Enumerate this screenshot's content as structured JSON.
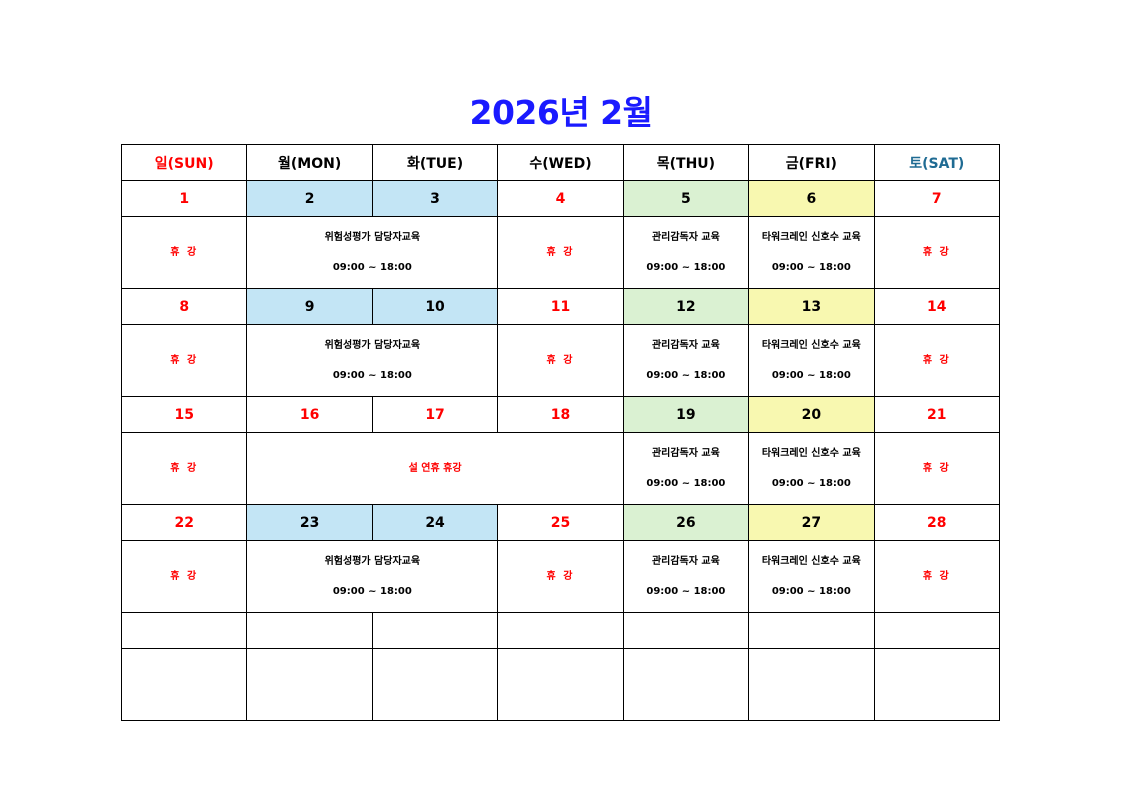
{
  "title": "2026년 2월",
  "colors": {
    "title": "#1a1aff",
    "holiday": "#ff0000",
    "saturday_header": "#1f6b93",
    "monday_tuesday_bg": "#c3e5f5",
    "thursday_bg": "#daf1d2",
    "friday_bg": "#f8f8b0"
  },
  "headers": [
    {
      "label": "일(SUN)",
      "style": "red"
    },
    {
      "label": "월(MON)",
      "style": "blk"
    },
    {
      "label": "화(TUE)",
      "style": "blk"
    },
    {
      "label": "수(WED)",
      "style": "blk"
    },
    {
      "label": "목(THU)",
      "style": "blk"
    },
    {
      "label": "금(FRI)",
      "style": "blk"
    },
    {
      "label": "토(SAT)",
      "style": "sat"
    }
  ],
  "weeks": [
    {
      "dates": [
        {
          "day": "1",
          "style": "red"
        },
        {
          "day": "2",
          "style": "blk bg-blue"
        },
        {
          "day": "3",
          "style": "blk bg-blue"
        },
        {
          "day": "4",
          "style": "red"
        },
        {
          "day": "5",
          "style": "blk bg-green"
        },
        {
          "day": "6",
          "style": "blk bg-yellow"
        },
        {
          "day": "7",
          "style": "red"
        }
      ],
      "events": [
        {
          "span": 1,
          "lines": [
            "휴 강"
          ],
          "style": "red holi"
        },
        {
          "span": 2,
          "lines": [
            "위험성평가 담당자교육",
            "09:00 ~ 18:00"
          ],
          "style": "blk"
        },
        {
          "span": 1,
          "lines": [
            "휴 강"
          ],
          "style": "red holi"
        },
        {
          "span": 1,
          "lines": [
            "관리감독자 교육",
            "09:00 ~ 18:00"
          ],
          "style": "blk"
        },
        {
          "span": 1,
          "lines": [
            "타워크레인 신호수 교육",
            "09:00 ~ 18:00"
          ],
          "style": "blk"
        },
        {
          "span": 1,
          "lines": [
            "휴 강"
          ],
          "style": "red holi"
        }
      ]
    },
    {
      "dates": [
        {
          "day": "8",
          "style": "red"
        },
        {
          "day": "9",
          "style": "blk bg-blue"
        },
        {
          "day": "10",
          "style": "blk bg-blue"
        },
        {
          "day": "11",
          "style": "red"
        },
        {
          "day": "12",
          "style": "blk bg-green"
        },
        {
          "day": "13",
          "style": "blk bg-yellow"
        },
        {
          "day": "14",
          "style": "red"
        }
      ],
      "events": [
        {
          "span": 1,
          "lines": [
            "휴 강"
          ],
          "style": "red holi"
        },
        {
          "span": 2,
          "lines": [
            "위험성평가 담당자교육",
            "09:00 ~ 18:00"
          ],
          "style": "blk"
        },
        {
          "span": 1,
          "lines": [
            "휴 강"
          ],
          "style": "red holi"
        },
        {
          "span": 1,
          "lines": [
            "관리감독자 교육",
            "09:00 ~ 18:00"
          ],
          "style": "blk"
        },
        {
          "span": 1,
          "lines": [
            "타워크레인 신호수 교육",
            "09:00 ~ 18:00"
          ],
          "style": "blk"
        },
        {
          "span": 1,
          "lines": [
            "휴 강"
          ],
          "style": "red holi"
        }
      ]
    },
    {
      "dates": [
        {
          "day": "15",
          "style": "red"
        },
        {
          "day": "16",
          "style": "red"
        },
        {
          "day": "17",
          "style": "red"
        },
        {
          "day": "18",
          "style": "red"
        },
        {
          "day": "19",
          "style": "blk bg-green"
        },
        {
          "day": "20",
          "style": "blk bg-yellow"
        },
        {
          "day": "21",
          "style": "red"
        }
      ],
      "events": [
        {
          "span": 1,
          "lines": [
            "휴 강"
          ],
          "style": "red holi"
        },
        {
          "span": 3,
          "lines": [
            "설 연휴 휴강"
          ],
          "style": "red"
        },
        {
          "span": 1,
          "lines": [
            "관리감독자 교육",
            "09:00 ~ 18:00"
          ],
          "style": "blk"
        },
        {
          "span": 1,
          "lines": [
            "타워크레인 신호수 교육",
            "09:00 ~ 18:00"
          ],
          "style": "blk"
        },
        {
          "span": 1,
          "lines": [
            "휴 강"
          ],
          "style": "red holi"
        }
      ]
    },
    {
      "dates": [
        {
          "day": "22",
          "style": "red"
        },
        {
          "day": "23",
          "style": "blk bg-blue"
        },
        {
          "day": "24",
          "style": "blk bg-blue"
        },
        {
          "day": "25",
          "style": "red"
        },
        {
          "day": "26",
          "style": "blk bg-green"
        },
        {
          "day": "27",
          "style": "blk bg-yellow"
        },
        {
          "day": "28",
          "style": "red"
        }
      ],
      "events": [
        {
          "span": 1,
          "lines": [
            "휴 강"
          ],
          "style": "red holi"
        },
        {
          "span": 2,
          "lines": [
            "위험성평가 담당자교육",
            "09:00 ~ 18:00"
          ],
          "style": "blk"
        },
        {
          "span": 1,
          "lines": [
            "휴 강"
          ],
          "style": "red holi"
        },
        {
          "span": 1,
          "lines": [
            "관리감독자 교육",
            "09:00 ~ 18:00"
          ],
          "style": "blk"
        },
        {
          "span": 1,
          "lines": [
            "타워크레인 신호수 교육",
            "09:00 ~ 18:00"
          ],
          "style": "blk"
        },
        {
          "span": 1,
          "lines": [
            "휴 강"
          ],
          "style": "red holi"
        }
      ]
    },
    {
      "dates": [
        {
          "day": "",
          "style": ""
        },
        {
          "day": "",
          "style": ""
        },
        {
          "day": "",
          "style": ""
        },
        {
          "day": "",
          "style": ""
        },
        {
          "day": "",
          "style": ""
        },
        {
          "day": "",
          "style": ""
        },
        {
          "day": "",
          "style": ""
        }
      ],
      "events": [
        {
          "span": 1,
          "lines": [],
          "style": ""
        },
        {
          "span": 1,
          "lines": [],
          "style": ""
        },
        {
          "span": 1,
          "lines": [],
          "style": ""
        },
        {
          "span": 1,
          "lines": [],
          "style": ""
        },
        {
          "span": 1,
          "lines": [],
          "style": ""
        },
        {
          "span": 1,
          "lines": [],
          "style": ""
        },
        {
          "span": 1,
          "lines": [],
          "style": ""
        }
      ]
    }
  ]
}
